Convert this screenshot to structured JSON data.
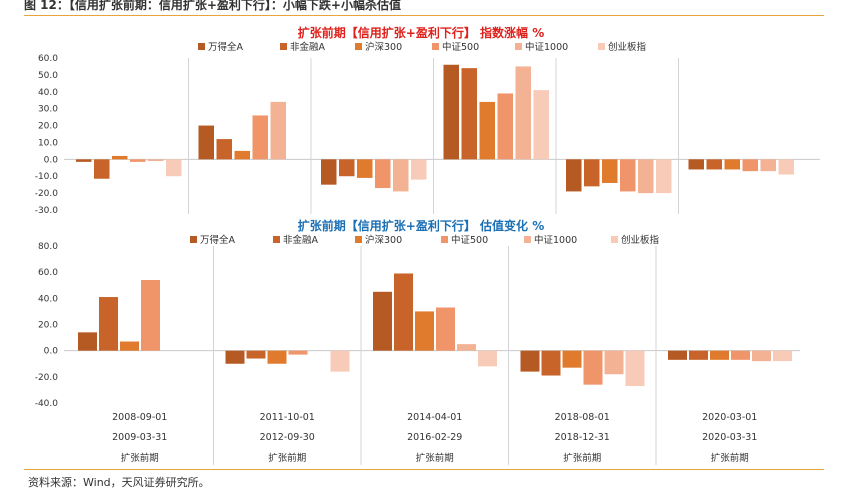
{
  "figure_title": "图 12：【信用扩张前期：信用扩张+盈利下行】：小幅下跌+小幅杀估值",
  "source_note": "资料来源：Wind，天风证券研究所。",
  "colors": {
    "series": [
      "#b55a23",
      "#c8642a",
      "#e07b2e",
      "#f0956a",
      "#f3b293",
      "#f7cbb7"
    ],
    "accent_rule": "#e8a33d",
    "title_top": "#e0201a",
    "title_bottom": "#1a6fb5"
  },
  "chart_data": [
    {
      "type": "bar",
      "title": "扩张前期【信用扩张+盈利下行】 指数涨幅 %",
      "ylim": [
        -30,
        60
      ],
      "yticks": [
        "-30.0",
        "-20.0",
        "-10.0",
        "0.0",
        "10.0",
        "20.0",
        "30.0",
        "40.0",
        "50.0",
        "60.0"
      ],
      "grid": false,
      "legend_position": "top-center",
      "series": [
        {
          "name": "万得全A",
          "values": [
            -1.5,
            20,
            -15,
            56,
            -19,
            -6
          ]
        },
        {
          "name": "非金融A",
          "values": [
            -11.5,
            12,
            -10,
            54,
            -16,
            -6
          ]
        },
        {
          "name": "沪深300",
          "values": [
            2,
            5,
            -11,
            34,
            -14,
            -6
          ]
        },
        {
          "name": "中证500",
          "values": [
            -1.5,
            26,
            -17,
            39,
            -19,
            -7
          ]
        },
        {
          "name": "中证1000",
          "values": [
            -1,
            34,
            -19,
            55,
            -20,
            -7
          ]
        },
        {
          "name": "创业板指",
          "values": [
            -10,
            0,
            -12,
            41,
            -20,
            -9
          ]
        }
      ]
    },
    {
      "type": "bar",
      "title": "扩张前期【信用扩张+盈利下行】 估值变化 %",
      "ylim": [
        -40,
        80
      ],
      "yticks": [
        "-40.0",
        "-20.0",
        "0.0",
        "20.0",
        "40.0",
        "60.0",
        "80.0"
      ],
      "grid": false,
      "legend_position": "top-center",
      "series": [
        {
          "name": "万得全A",
          "values": [
            14,
            -10,
            45,
            -16,
            -7
          ]
        },
        {
          "name": "非金融A",
          "values": [
            41,
            -6,
            59,
            -19,
            -7
          ]
        },
        {
          "name": "沪深300",
          "values": [
            7,
            -10,
            30,
            -13,
            -7
          ]
        },
        {
          "name": "中证500",
          "values": [
            54,
            -3,
            33,
            -26,
            -7
          ]
        },
        {
          "name": "中证1000",
          "values": [
            0,
            0,
            5,
            -18,
            -8
          ]
        },
        {
          "name": "创业板指",
          "values": [
            0,
            -16,
            -12,
            -27,
            -8
          ]
        }
      ]
    }
  ],
  "periods": [
    {
      "start": "2008-09-01",
      "end": "2009-03-31",
      "label": "扩张前期"
    },
    {
      "start": "2011-10-01",
      "end": "2012-09-30",
      "label": "扩张前期"
    },
    {
      "start": "2014-04-01",
      "end": "2016-02-29",
      "label": "扩张前期"
    },
    {
      "start": "2018-08-01",
      "end": "2018-12-31",
      "label": "扩张前期"
    },
    {
      "start": "2020-03-01",
      "end": "2020-03-31",
      "label": "扩张前期"
    }
  ]
}
